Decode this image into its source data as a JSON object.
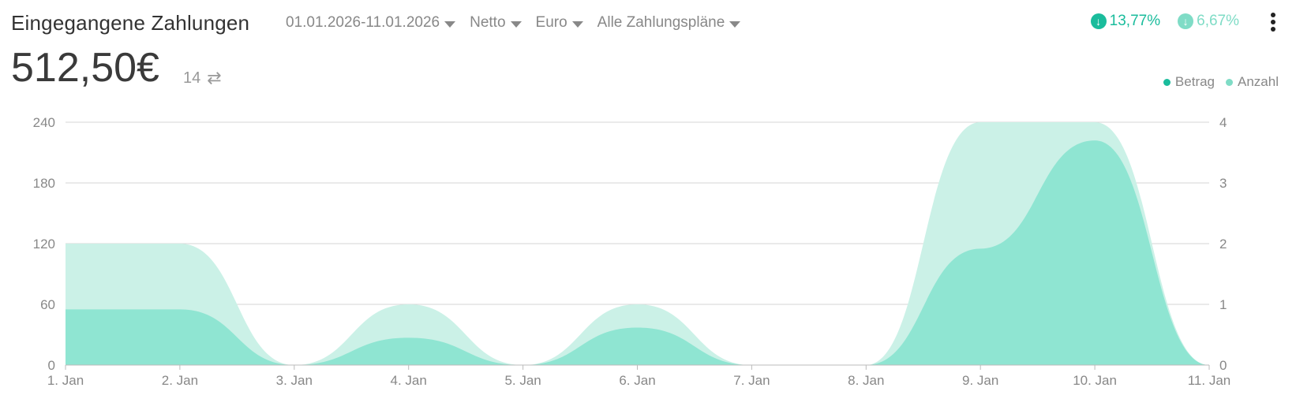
{
  "header": {
    "title": "Eingegangene Zahlungen",
    "filters": [
      {
        "label": "01.01.2026-11.01.2026"
      },
      {
        "label": "Netto"
      },
      {
        "label": "Euro"
      },
      {
        "label": "Alle Zahlungspläne"
      }
    ],
    "total": "512,50€",
    "count": "14",
    "changes": [
      {
        "value": "13,77%",
        "color": "#1abc9c",
        "icon": "arrow-down-circle-icon"
      },
      {
        "value": "6,67%",
        "color": "#7fdcc6",
        "icon": "arrow-down-circle-icon"
      }
    ]
  },
  "chart_data": {
    "type": "area",
    "categories": [
      "1. Jan",
      "2. Jan",
      "3. Jan",
      "4. Jan",
      "5. Jan",
      "6. Jan",
      "7. Jan",
      "8. Jan",
      "9. Jan",
      "10. Jan",
      "11. Jan"
    ],
    "y_left": {
      "ticks": [
        "0",
        "60",
        "120",
        "180",
        "240"
      ],
      "ylim": [
        0,
        240
      ]
    },
    "y_right": {
      "ticks": [
        "0",
        "1",
        "2",
        "3",
        "4"
      ],
      "ylim": [
        0,
        4
      ]
    },
    "series": [
      {
        "name": "Anzahl",
        "axis": "right",
        "color": "#cbf1e7",
        "values": [
          2,
          2,
          0,
          1,
          0,
          1,
          0,
          0,
          4,
          4,
          0
        ]
      },
      {
        "name": "Betrag",
        "axis": "left",
        "color": "#8fe5d2",
        "values": [
          55,
          55,
          0,
          27,
          0,
          37,
          0,
          0,
          115,
          222,
          0
        ]
      }
    ],
    "legend": [
      {
        "name": "Betrag",
        "color": "#1abc9c"
      },
      {
        "name": "Anzahl",
        "color": "#7fdcc6"
      }
    ],
    "grid": true,
    "legend_position": "top-right"
  }
}
